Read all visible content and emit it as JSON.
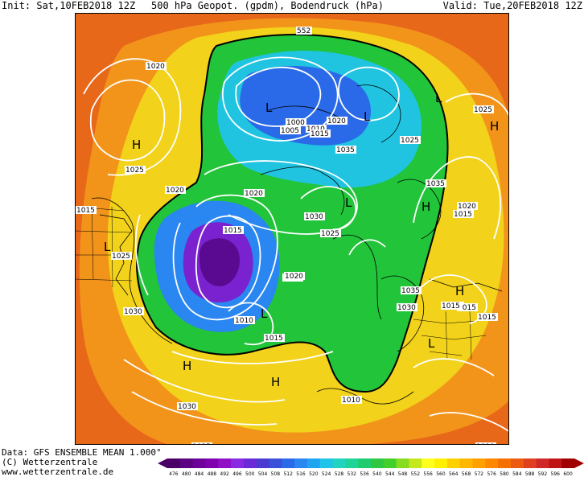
{
  "header": {
    "init": "Init: Sat,10FEB2018 12Z",
    "title": "500 hPa Geopot. (gpdm), Bodendruck (hPa)",
    "valid": "Valid: Tue,20FEB2018 12Z"
  },
  "footer": {
    "data_line": "Data: GFS ENSEMBLE MEAN 1.000°",
    "copyright": "(C) Wetterzentrale",
    "website": "www.wetterzentrale.de"
  },
  "legend": {
    "values": [
      "476",
      "480",
      "484",
      "488",
      "492",
      "496",
      "500",
      "504",
      "508",
      "512",
      "516",
      "520",
      "524",
      "528",
      "532",
      "536",
      "540",
      "544",
      "548",
      "552",
      "556",
      "560",
      "564",
      "568",
      "572",
      "576",
      "580",
      "584",
      "588",
      "592",
      "596",
      "600"
    ],
    "colors": [
      "#4b0068",
      "#5a0080",
      "#6d0099",
      "#8000b0",
      "#9010c8",
      "#8a2be2",
      "#6a2ad8",
      "#4a3ad0",
      "#3a50d8",
      "#2a6ae8",
      "#2a86f0",
      "#20a4f0",
      "#20c4e8",
      "#20d4c0",
      "#20d498",
      "#20cc70",
      "#30c840",
      "#44d02c",
      "#88dc20",
      "#c4e81c",
      "#ffff20",
      "#fff000",
      "#ffd000",
      "#ffb800",
      "#ffa000",
      "#ff8800",
      "#f57000",
      "#ec5a10",
      "#e04020",
      "#d02828",
      "#c01414",
      "#a00000"
    ]
  },
  "map": {
    "center_value": "552",
    "highs": [
      "H",
      "H",
      "H",
      "H",
      "H",
      "H"
    ],
    "lows": [
      "L",
      "L",
      "L",
      "L",
      "L",
      "L",
      "L"
    ],
    "pressure_labels": [
      "1020",
      "1025",
      "1015",
      "1025",
      "1020",
      "1015",
      "1000",
      "1005",
      "1010",
      "1015",
      "1020",
      "1030",
      "1035",
      "1025",
      "1035",
      "1020",
      "1015",
      "1030",
      "1025",
      "1020",
      "1015",
      "1010",
      "1025",
      "1030",
      "1015",
      "1035",
      "1030",
      "1020",
      "1015",
      "1015",
      "1030",
      "1025",
      "1010",
      "1010",
      "1025"
    ],
    "ring_label": "552",
    "colors": {
      "outer": "#e8681a",
      "orange": "#f2941a",
      "yellow": "#f2d21a",
      "green": "#22c43a",
      "cyan": "#20c4e0",
      "blue": "#2a6ae8",
      "purple": "#7a22d0",
      "deep_purple": "#5a0a90",
      "isobar": "#ffffff",
      "coast": "#000000"
    }
  }
}
